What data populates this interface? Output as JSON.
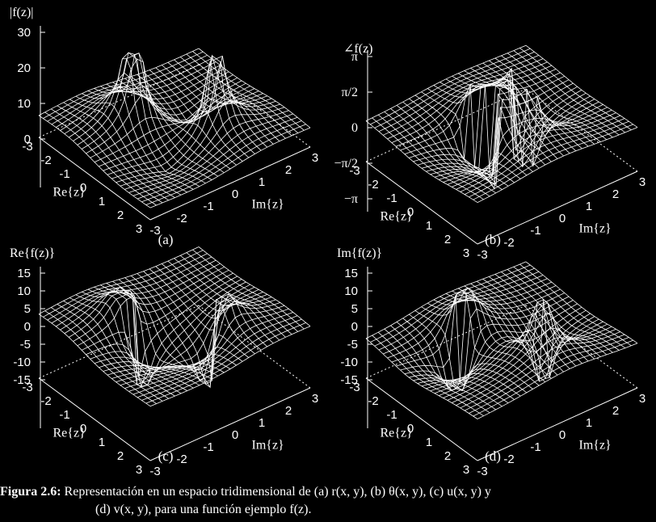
{
  "chart_data": [
    {
      "id": "a",
      "type": "surface3d",
      "panel_label": "(a)",
      "zlabel": "|f(z)|",
      "xlabel": "Re{z}",
      "ylabel": "Im{z}",
      "xlim": [
        -3,
        3
      ],
      "ylim": [
        -3,
        3
      ],
      "zlim": [
        0,
        30
      ],
      "zticks": [
        "30",
        "20",
        "10",
        "0"
      ],
      "xticks": [
        "-3",
        "-2",
        "-1",
        "0",
        "1",
        "2",
        "3"
      ],
      "yticks": [
        "-3",
        "-2",
        "-1",
        "0",
        "1",
        "2",
        "3"
      ],
      "grid": false
    },
    {
      "id": "b",
      "type": "surface3d",
      "panel_label": "(b)",
      "zlabel": "∠f(z)",
      "xlabel": "Re{z}",
      "ylabel": "Im{z}",
      "xlim": [
        -3,
        3
      ],
      "ylim": [
        -3,
        3
      ],
      "zlim": [
        -3.1416,
        3.1416
      ],
      "zticks": [
        "π",
        "π/2",
        "0",
        "−π/2",
        "−π"
      ],
      "xticks": [
        "-3",
        "-2",
        "-1",
        "0",
        "1",
        "2",
        "3"
      ],
      "yticks": [
        "-3",
        "-2",
        "-1",
        "0",
        "1",
        "2",
        "3"
      ],
      "grid": false
    },
    {
      "id": "c",
      "type": "surface3d",
      "panel_label": "(c)",
      "zlabel": "Re{f(z)}",
      "xlabel": "Re{z}",
      "ylabel": "Im{z}",
      "xlim": [
        -3,
        3
      ],
      "ylim": [
        -3,
        3
      ],
      "zlim": [
        -15,
        15
      ],
      "zticks": [
        "15",
        "10",
        "5",
        "0",
        "-5",
        "-10",
        "-15"
      ],
      "xticks": [
        "-3",
        "-2",
        "-1",
        "0",
        "1",
        "2",
        "3"
      ],
      "yticks": [
        "-3",
        "-2",
        "-1",
        "0",
        "1",
        "2",
        "3"
      ],
      "grid": false
    },
    {
      "id": "d",
      "type": "surface3d",
      "panel_label": "(d)",
      "zlabel": "Im{f(z)}",
      "xlabel": "Re{z}",
      "ylabel": "Im{z}",
      "xlim": [
        -3,
        3
      ],
      "ylim": [
        -3,
        3
      ],
      "zlim": [
        -15,
        15
      ],
      "zticks": [
        "15",
        "10",
        "5",
        "0",
        "-5",
        "-10",
        "-15"
      ],
      "xticks": [
        "-3",
        "-2",
        "-1",
        "0",
        "1",
        "2",
        "3"
      ],
      "yticks": [
        "-3",
        "-2",
        "-1",
        "0",
        "1",
        "2",
        "3"
      ],
      "grid": false
    }
  ],
  "caption": {
    "label": "Figura 2.6:",
    "line1": "Representación en un espacio tridimensional de (a) r(x, y), (b) θ(x, y), (c) u(x, y) y",
    "line2": "(d) v(x, y), para una función ejemplo f(z)."
  },
  "colors": {
    "background": "#000000",
    "mesh": "#ffffff",
    "underside": "#22c8d8",
    "text": "#ffffff"
  }
}
